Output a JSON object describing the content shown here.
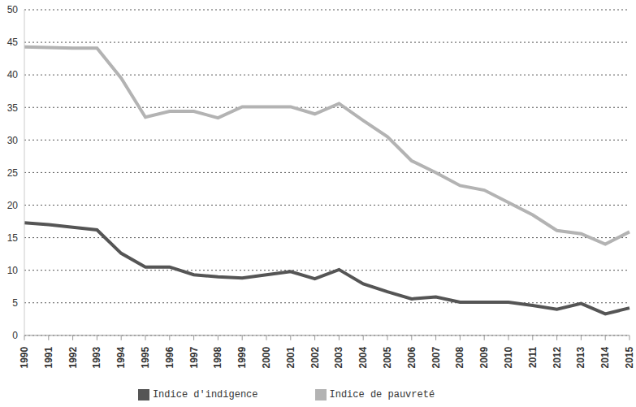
{
  "chart_data": {
    "type": "line",
    "categories": [
      "1990",
      "1991",
      "1992",
      "1993",
      "1994",
      "1995",
      "1996",
      "1997",
      "1998",
      "1999",
      "2000",
      "2001",
      "2002",
      "2003",
      "2004",
      "2005",
      "2006",
      "2007",
      "2008",
      "2009",
      "2010",
      "2011",
      "2012",
      "2013",
      "2014",
      "2015"
    ],
    "series": [
      {
        "name": "Indice de pauvreté",
        "color": "#b3b3b3",
        "marker": "none",
        "values": [
          44.3,
          44.2,
          44.1,
          44.1,
          39.5,
          33.5,
          34.4,
          34.4,
          33.4,
          35.1,
          35.1,
          35.1,
          34.0,
          35.6,
          33.0,
          30.5,
          26.8,
          25.0,
          23.0,
          22.3,
          20.4,
          18.5,
          16.1,
          15.6,
          14.0,
          15.9
        ]
      },
      {
        "name": "Indice d'indigence",
        "color": "#555555",
        "marker": "none",
        "values": [
          17.3,
          17.0,
          16.6,
          16.2,
          12.6,
          10.5,
          10.5,
          9.3,
          9.0,
          8.8,
          9.3,
          9.8,
          8.7,
          10.1,
          7.9,
          6.7,
          5.6,
          5.9,
          5.1,
          5.1,
          5.1,
          4.6,
          4.0,
          4.9,
          3.3,
          4.2
        ]
      }
    ],
    "ylim": [
      0,
      50
    ],
    "yticks": [
      0,
      5,
      10,
      15,
      20,
      25,
      30,
      35,
      40,
      45,
      50
    ],
    "grid": true,
    "legend": "bottom"
  }
}
